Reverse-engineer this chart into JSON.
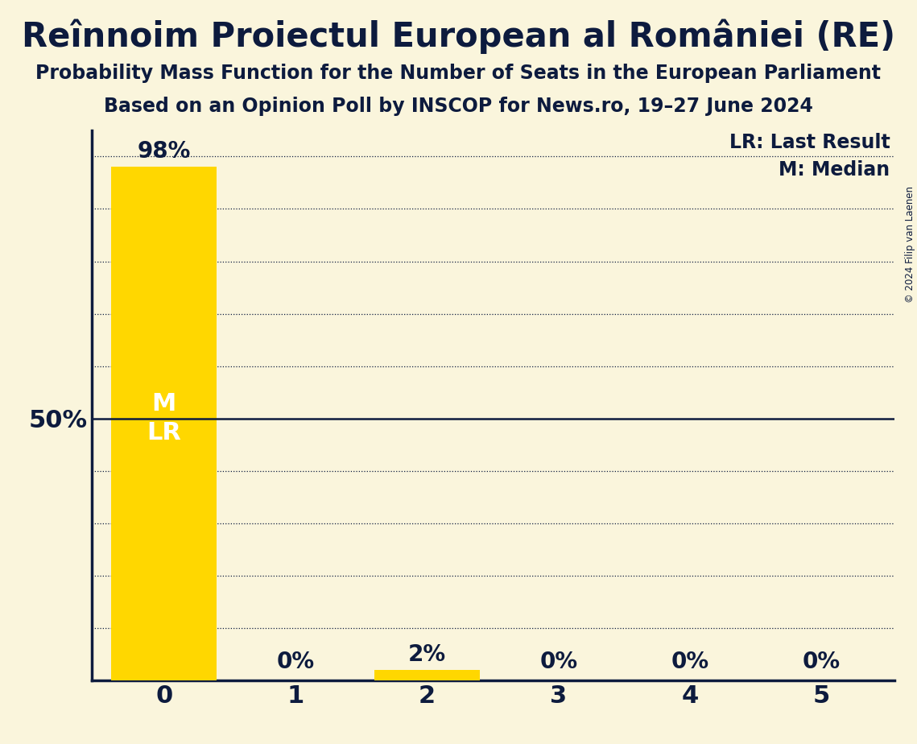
{
  "title": "Reînnoim Proiectul European al României (RE)",
  "subtitle1": "Probability Mass Function for the Number of Seats in the European Parliament",
  "subtitle2": "Based on an Opinion Poll by INSCOP for News.ro, 19–27 June 2024",
  "copyright": "© 2024 Filip van Laenen",
  "categories": [
    0,
    1,
    2,
    3,
    4,
    5
  ],
  "values": [
    0.98,
    0.0,
    0.02,
    0.0,
    0.0,
    0.0
  ],
  "bar_color": "#FFD700",
  "background_color": "#FAF5DC",
  "text_color": "#0D1B3E",
  "median": 0,
  "last_result": 0,
  "yticks_dotted": [
    0.1,
    0.2,
    0.3,
    0.4,
    0.6,
    0.7,
    0.8,
    0.9,
    1.0
  ],
  "ytick_solid": 0.5,
  "ylim": [
    0,
    1.05
  ],
  "ylabel_50pct": "50%",
  "legend_lr": "LR: Last Result",
  "legend_m": "M: Median",
  "title_fontsize": 30,
  "subtitle_fontsize": 17,
  "label_fontsize": 17,
  "tick_fontsize": 22,
  "annotation_fontsize": 20,
  "inner_label_fontsize": 22
}
